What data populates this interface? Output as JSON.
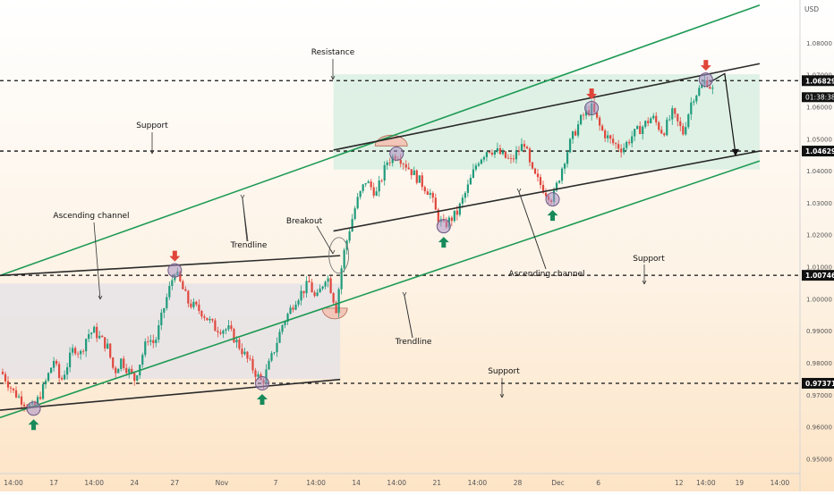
{
  "chart_data": {
    "type": "candlestick",
    "currency_label": "USD",
    "y_ticks": [
      "1.08000",
      "1.07000",
      "1.06000",
      "1.05000",
      "1.04000",
      "1.03000",
      "1.02000",
      "1.01000",
      "1.00000",
      "0.99000",
      "0.98000",
      "0.97000",
      "0.96000",
      "0.95000"
    ],
    "y_tick_values": [
      1.08,
      1.07,
      1.06,
      1.05,
      1.04,
      1.03,
      1.02,
      1.01,
      1.0,
      0.99,
      0.98,
      0.97,
      0.96,
      0.95
    ],
    "ylim": [
      0.9455,
      1.0935
    ],
    "x_ticks": [
      "14:00",
      "17",
      "14:00",
      "24",
      "27",
      "Nov",
      "7",
      "14:00",
      "14",
      "14:00",
      "21",
      "14:00",
      "28",
      "Dec",
      "6",
      "12",
      "14:00",
      "19",
      "14:00"
    ],
    "x_tick_positions": [
      0.5,
      3.5,
      6.5,
      9.5,
      12.5,
      16.0,
      20.0,
      23.0,
      26.0,
      29.0,
      32.0,
      35.0,
      38.0,
      41.0,
      44.0,
      50.0,
      52.0,
      54.5,
      57.5
    ],
    "x_domain": [
      -0.5,
      59.0
    ],
    "price_levels": [
      {
        "value": 1.06829,
        "label": "1.06829"
      },
      {
        "value": 1.04629,
        "label": "1.04629"
      },
      {
        "value": 1.00746,
        "label": "1.00746"
      },
      {
        "value": 0.97371,
        "label": "0.97371"
      }
    ],
    "current_price_label": "1.06829",
    "countdown_label": "01:38:38",
    "annotations": {
      "resistance": "Resistance",
      "support_top": "Support",
      "support_mid": "Support",
      "support_low": "Support",
      "ascending_channel_left": "Ascending channel",
      "ascending_channel_right": "Ascending channel",
      "trendline_upper": "Trendline",
      "trendline_lower": "Trendline",
      "breakout": "Breakout"
    },
    "trendlines": {
      "upper_green": [
        [
          -0.5,
          1.0074
        ],
        [
          56.0,
          1.0919
        ]
      ],
      "lower_green": [
        [
          -0.5,
          0.963
        ],
        [
          56.0,
          1.0432
        ]
      ],
      "left_channel_top": [
        [
          -0.5,
          1.0074
        ],
        [
          24.8,
          1.0136
        ]
      ],
      "left_channel_bottom": [
        [
          -0.5,
          0.9653
        ],
        [
          24.8,
          0.9749
        ]
      ],
      "right_channel_top": [
        [
          24.3,
          1.0466
        ],
        [
          56.0,
          1.0736
        ]
      ],
      "right_channel_bottom": [
        [
          24.3,
          1.0213
        ],
        [
          56.0,
          1.0463
        ]
      ]
    },
    "projection": [
      [
        52.3,
        1.0678
      ],
      [
        53.4,
        1.0705
      ],
      [
        54.2,
        1.0455
      ]
    ],
    "zones": {
      "left_gray": {
        "x": [
          -0.5,
          24.8
        ],
        "y": [
          0.9751,
          1.0049
        ]
      },
      "right_green": {
        "x": [
          24.3,
          56.0
        ],
        "y": [
          1.0405,
          1.0703
        ]
      }
    },
    "circled_pivots": [
      {
        "x": 2.0,
        "y": 0.9658
      },
      {
        "x": 12.5,
        "y": 1.009
      },
      {
        "x": 19.0,
        "y": 0.9737
      },
      {
        "x": 29.0,
        "y": 1.0455
      },
      {
        "x": 32.5,
        "y": 1.0228
      },
      {
        "x": 40.6,
        "y": 1.0312
      },
      {
        "x": 43.5,
        "y": 1.0597
      },
      {
        "x": 52.0,
        "y": 1.0686
      }
    ],
    "down_arrows": [
      {
        "x": 12.5
      },
      {
        "x": 43.5
      },
      {
        "x": 52.0
      }
    ],
    "up_arrows": [
      {
        "x": 2.0
      },
      {
        "x": 19.0
      },
      {
        "x": 32.5
      },
      {
        "x": 40.6
      }
    ],
    "close_path": [
      [
        -0.5,
        0.978
      ],
      [
        0.5,
        0.971
      ],
      [
        1.5,
        0.967
      ],
      [
        2.0,
        0.9658
      ],
      [
        2.8,
        0.973
      ],
      [
        3.5,
        0.981
      ],
      [
        4.0,
        0.974
      ],
      [
        5.0,
        0.985
      ],
      [
        5.5,
        0.983
      ],
      [
        6.0,
        0.989
      ],
      [
        6.5,
        0.99
      ],
      [
        7.5,
        0.985
      ],
      [
        8.0,
        0.977
      ],
      [
        8.5,
        0.981
      ],
      [
        9.5,
        0.975
      ],
      [
        10.5,
        0.988
      ],
      [
        11.0,
        0.986
      ],
      [
        11.8,
        0.999
      ],
      [
        12.5,
        1.009
      ],
      [
        13.5,
        0.999
      ],
      [
        14.5,
        0.996
      ],
      [
        15.5,
        0.991
      ],
      [
        16.5,
        0.9905
      ],
      [
        17.5,
        0.984
      ],
      [
        18.2,
        0.979
      ],
      [
        19.0,
        0.9737
      ],
      [
        19.8,
        0.983
      ],
      [
        20.5,
        0.992
      ],
      [
        21.5,
        1.0
      ],
      [
        22.5,
        1.005
      ],
      [
        23.0,
        0.9995
      ],
      [
        23.8,
        1.008
      ],
      [
        24.5,
        0.997
      ],
      [
        25.0,
        1.013
      ],
      [
        25.5,
        1.022
      ],
      [
        26.0,
        1.03
      ],
      [
        26.7,
        1.037
      ],
      [
        27.5,
        1.033
      ],
      [
        28.3,
        1.043
      ],
      [
        29.0,
        1.0455
      ],
      [
        29.7,
        1.042
      ],
      [
        30.5,
        1.038
      ],
      [
        31.5,
        1.033
      ],
      [
        32.0,
        1.026
      ],
      [
        32.5,
        1.0228
      ],
      [
        33.5,
        1.027
      ],
      [
        34.3,
        1.035
      ],
      [
        35.0,
        1.043
      ],
      [
        35.8,
        1.047
      ],
      [
        36.5,
        1.046
      ],
      [
        37.5,
        1.043
      ],
      [
        38.5,
        1.049
      ],
      [
        39.0,
        1.04
      ],
      [
        40.0,
        1.034
      ],
      [
        40.6,
        1.0312
      ],
      [
        41.5,
        1.044
      ],
      [
        42.0,
        1.05
      ],
      [
        42.8,
        1.057
      ],
      [
        43.5,
        1.0597
      ],
      [
        44.2,
        1.053
      ],
      [
        45.0,
        1.049
      ],
      [
        45.8,
        1.047
      ],
      [
        46.5,
        1.051
      ],
      [
        47.3,
        1.054
      ],
      [
        48.0,
        1.057
      ],
      [
        48.8,
        1.052
      ],
      [
        49.5,
        1.058
      ],
      [
        50.3,
        1.052
      ],
      [
        51.0,
        1.063
      ],
      [
        51.6,
        1.066
      ],
      [
        52.0,
        1.0686
      ],
      [
        52.5,
        1.0653
      ]
    ]
  }
}
